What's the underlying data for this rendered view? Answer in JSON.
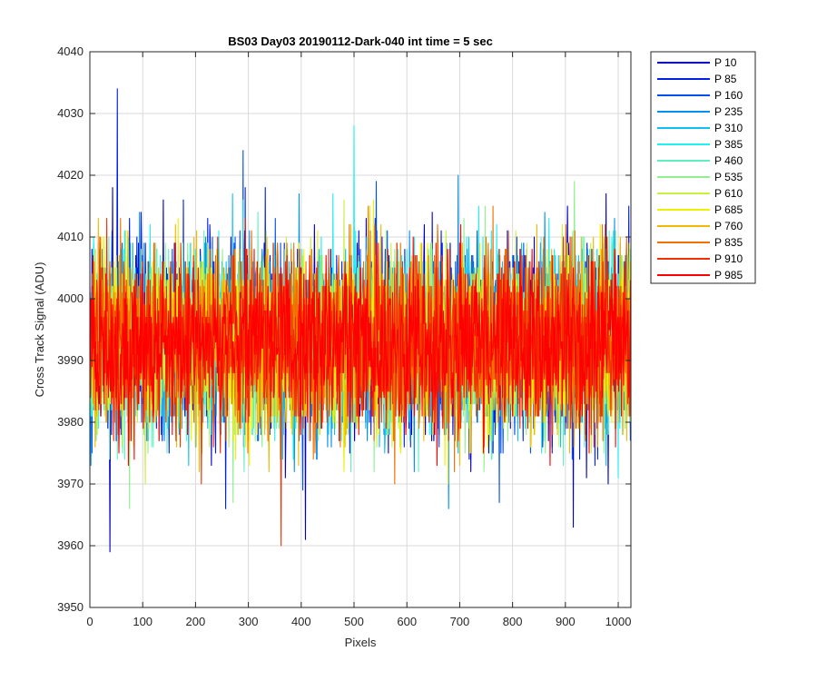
{
  "chart_data": {
    "type": "line",
    "title": "BS03 Day03 20190112-Dark-040 int time = 5 sec",
    "xlabel": "Pixels",
    "ylabel": "Cross Track Signal (ADU)",
    "xlim": [
      0,
      1024
    ],
    "ylim": [
      3950,
      4040
    ],
    "x_ticks": [
      0,
      100,
      200,
      300,
      400,
      500,
      600,
      700,
      800,
      900,
      1000
    ],
    "y_ticks": [
      3950,
      3960,
      3970,
      3980,
      3990,
      4000,
      4010,
      4020,
      4030,
      4040
    ],
    "grid": true,
    "legend_position": "outside-top-right",
    "n_points": 1024,
    "noise_mean": 3993,
    "noise_std": 7,
    "series": [
      {
        "name": "P 10",
        "color": "#0000c8"
      },
      {
        "name": "P 85",
        "color": "#0020e6"
      },
      {
        "name": "P 160",
        "color": "#0050f0"
      },
      {
        "name": "P 235",
        "color": "#0090f0"
      },
      {
        "name": "P 310",
        "color": "#10c0f0"
      },
      {
        "name": "P 385",
        "color": "#20f0f0"
      },
      {
        "name": "P 460",
        "color": "#60f0c0"
      },
      {
        "name": "P 535",
        "color": "#90f090"
      },
      {
        "name": "P 610",
        "color": "#c8f040"
      },
      {
        "name": "P 685",
        "color": "#f0f000"
      },
      {
        "name": "P 760",
        "color": "#f0b800"
      },
      {
        "name": "P 835",
        "color": "#f07000"
      },
      {
        "name": "P 910",
        "color": "#f03000"
      },
      {
        "name": "P 985",
        "color": "#ff0000"
      }
    ],
    "notable_points": [
      {
        "series": "P 85",
        "x": 52,
        "y": 4034
      },
      {
        "series": "P 10",
        "x": 38,
        "y": 3959
      },
      {
        "series": "P 385",
        "x": 500,
        "y": 4028
      },
      {
        "series": "P 910",
        "x": 362,
        "y": 3960
      },
      {
        "series": "P 10",
        "x": 408,
        "y": 3961
      },
      {
        "series": "P 160",
        "x": 290,
        "y": 4024
      },
      {
        "series": "P 10",
        "x": 915,
        "y": 3963
      }
    ]
  }
}
